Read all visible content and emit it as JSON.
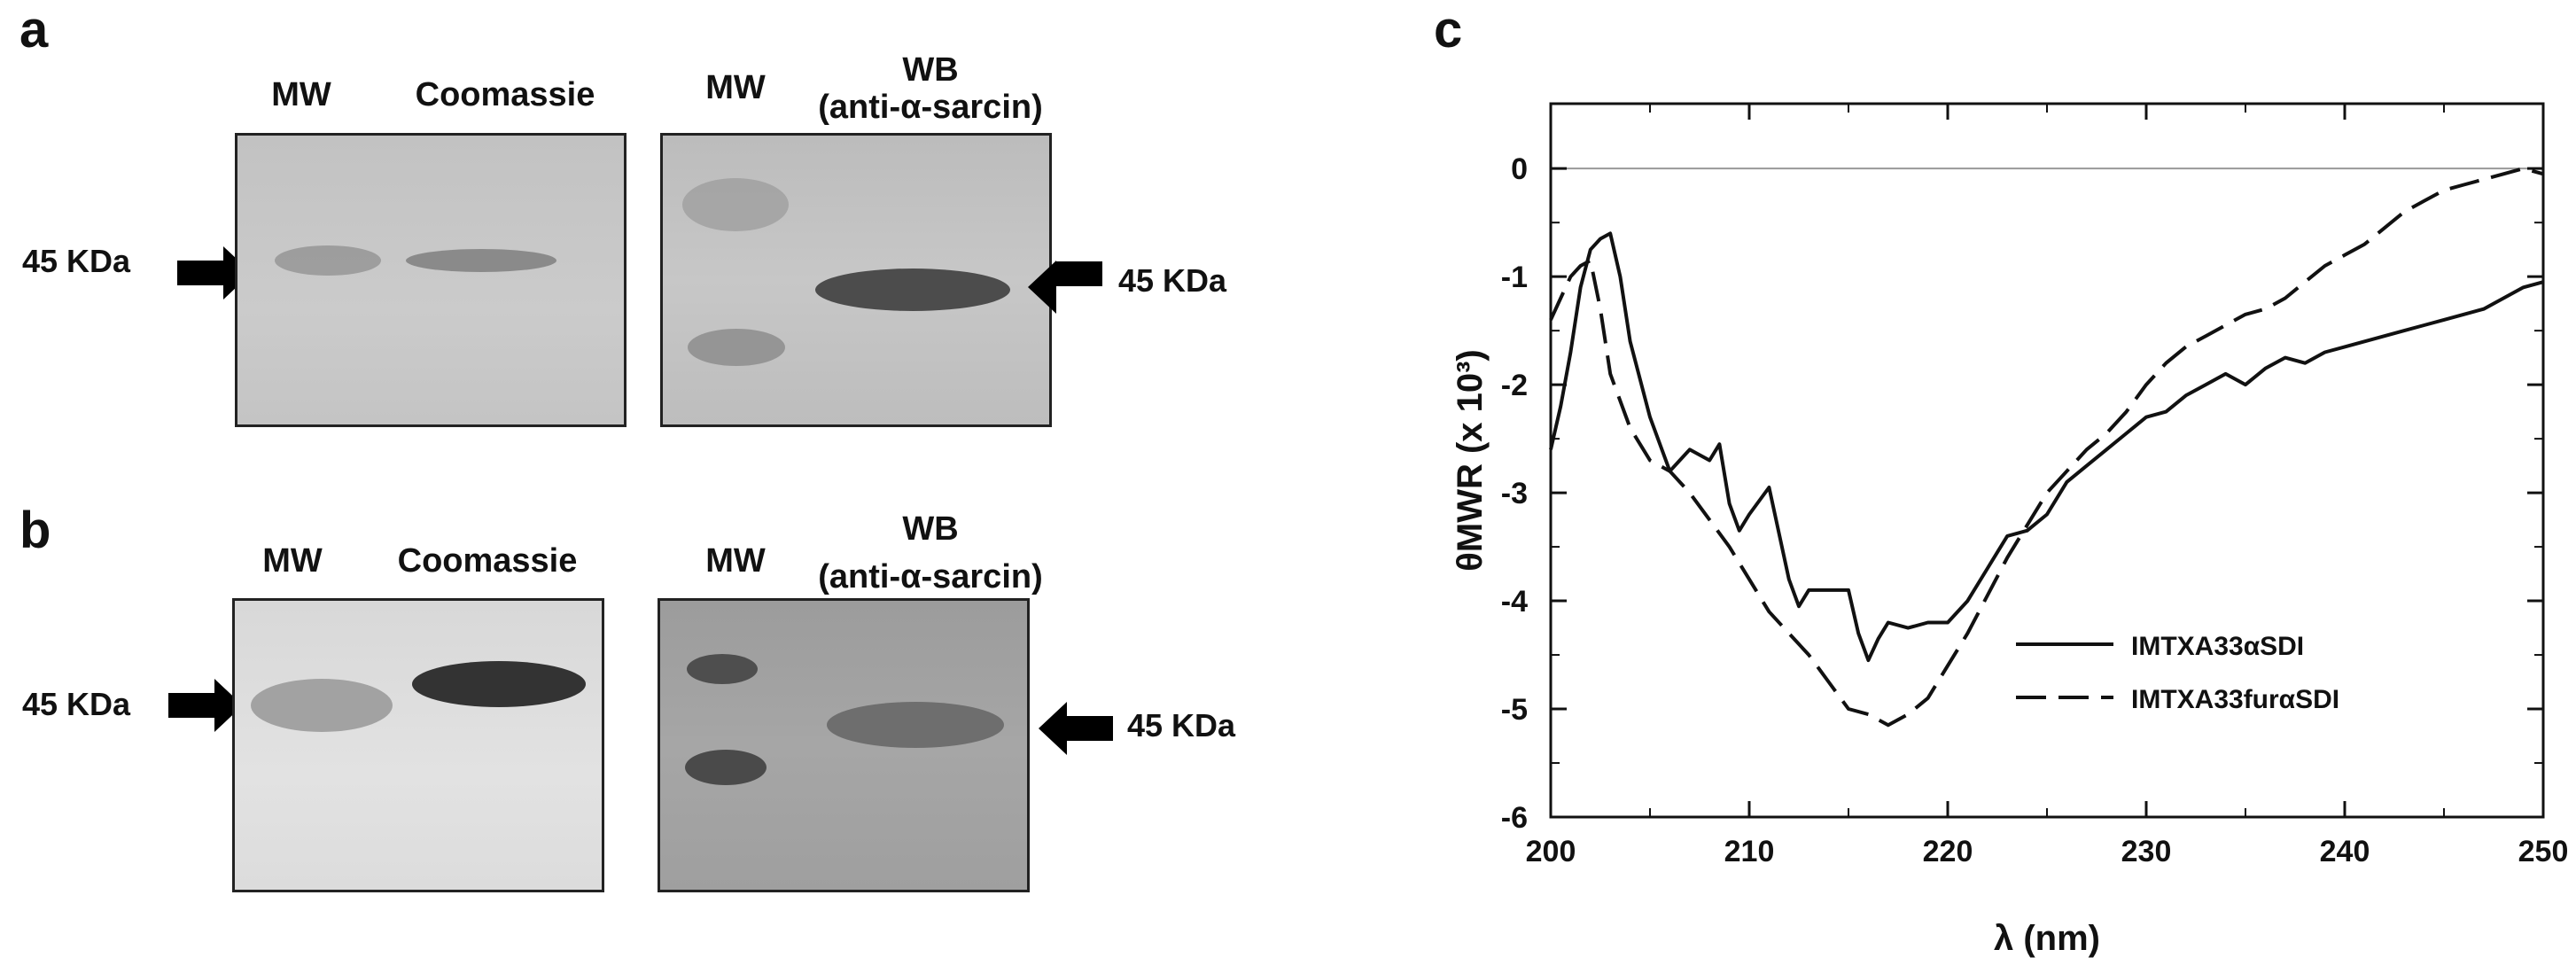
{
  "panels": {
    "a": {
      "letter": "a",
      "mw_label_1": "MW",
      "coomassie_label": "Coomassie",
      "mw_label_2": "MW",
      "wb_label_line1": "WB",
      "wb_label_line2": "(anti-α-sarcin)",
      "kda_left": "45 KDa",
      "kda_right": "45 KDa"
    },
    "b": {
      "letter": "b",
      "mw_label_1": "MW",
      "coomassie_label": "Coomassie",
      "mw_label_2": "MW",
      "wb_label_line1": "WB",
      "wb_label_line2": "(anti-α-sarcin)",
      "kda_left": "45 KDa",
      "kda_right": "45 KDa"
    },
    "c": {
      "letter": "c"
    }
  },
  "chart_data": {
    "type": "line",
    "title": "",
    "xlabel": "λ (nm)",
    "ylabel": "θMWR (x 10³)",
    "xlim": [
      200,
      250
    ],
    "ylim": [
      -6,
      0.6
    ],
    "xticks": [
      200,
      210,
      220,
      230,
      240,
      250
    ],
    "yticks": [
      0,
      -1,
      -2,
      -3,
      -4,
      -5,
      -6
    ],
    "grid": false,
    "legend_position": "lower-right",
    "zero_line": true,
    "series": [
      {
        "name": "IMTXA33αSDI",
        "style": "solid",
        "x": [
          200,
          200.5,
          201,
          201.5,
          202,
          202.5,
          203,
          203.5,
          204,
          205,
          206,
          206.5,
          207,
          208,
          208.5,
          209,
          209.5,
          210,
          211,
          212,
          212.5,
          213,
          214,
          215,
          215.5,
          216,
          216.5,
          217,
          218,
          219,
          220,
          221,
          222,
          223,
          224,
          225,
          226,
          227,
          228,
          229,
          230,
          231,
          232,
          233,
          234,
          235,
          236,
          237,
          238,
          239,
          240,
          241,
          242,
          243,
          244,
          245,
          246,
          247,
          248,
          249,
          250
        ],
        "y": [
          -2.6,
          -2.2,
          -1.7,
          -1.1,
          -0.75,
          -0.65,
          -0.6,
          -1.0,
          -1.6,
          -2.3,
          -2.8,
          -2.7,
          -2.6,
          -2.7,
          -2.55,
          -3.1,
          -3.35,
          -3.2,
          -2.95,
          -3.8,
          -4.05,
          -3.9,
          -3.9,
          -3.9,
          -4.3,
          -4.55,
          -4.35,
          -4.2,
          -4.25,
          -4.2,
          -4.2,
          -4.0,
          -3.7,
          -3.4,
          -3.35,
          -3.2,
          -2.9,
          -2.75,
          -2.6,
          -2.45,
          -2.3,
          -2.25,
          -2.1,
          -2.0,
          -1.9,
          -2.0,
          -1.85,
          -1.75,
          -1.8,
          -1.7,
          -1.65,
          -1.6,
          -1.55,
          -1.5,
          -1.45,
          -1.4,
          -1.35,
          -1.3,
          -1.2,
          -1.1,
          -1.05
        ]
      },
      {
        "name": "IMTXA33furαSDI",
        "style": "dashed",
        "x": [
          200,
          200.5,
          201,
          201.5,
          202,
          202.5,
          203,
          204,
          205,
          206,
          207,
          208,
          209,
          210,
          211,
          212,
          213,
          214,
          215,
          216,
          217,
          218,
          219,
          220,
          221,
          222,
          223,
          224,
          225,
          226,
          227,
          228,
          229,
          230,
          231,
          232,
          233,
          234,
          235,
          236,
          237,
          238,
          239,
          240,
          241,
          242,
          243,
          244,
          245,
          246,
          247,
          248,
          249,
          250
        ],
        "y": [
          -1.4,
          -1.2,
          -1.0,
          -0.9,
          -0.85,
          -1.3,
          -1.9,
          -2.4,
          -2.7,
          -2.8,
          -3.0,
          -3.25,
          -3.5,
          -3.8,
          -4.1,
          -4.3,
          -4.5,
          -4.75,
          -5.0,
          -5.05,
          -5.15,
          -5.05,
          -4.9,
          -4.6,
          -4.3,
          -3.95,
          -3.6,
          -3.3,
          -3.0,
          -2.8,
          -2.6,
          -2.45,
          -2.25,
          -2.0,
          -1.8,
          -1.65,
          -1.55,
          -1.45,
          -1.35,
          -1.3,
          -1.2,
          -1.05,
          -0.9,
          -0.8,
          -0.7,
          -0.55,
          -0.4,
          -0.3,
          -0.2,
          -0.15,
          -0.1,
          -0.05,
          0.0,
          -0.05
        ]
      }
    ]
  },
  "colors": {
    "gel_light": "#c6c6c6",
    "gel_dark": "#a2a2a2",
    "band_dark": "#353535",
    "band_mid": "#6a6a6a",
    "line": "#111111"
  }
}
